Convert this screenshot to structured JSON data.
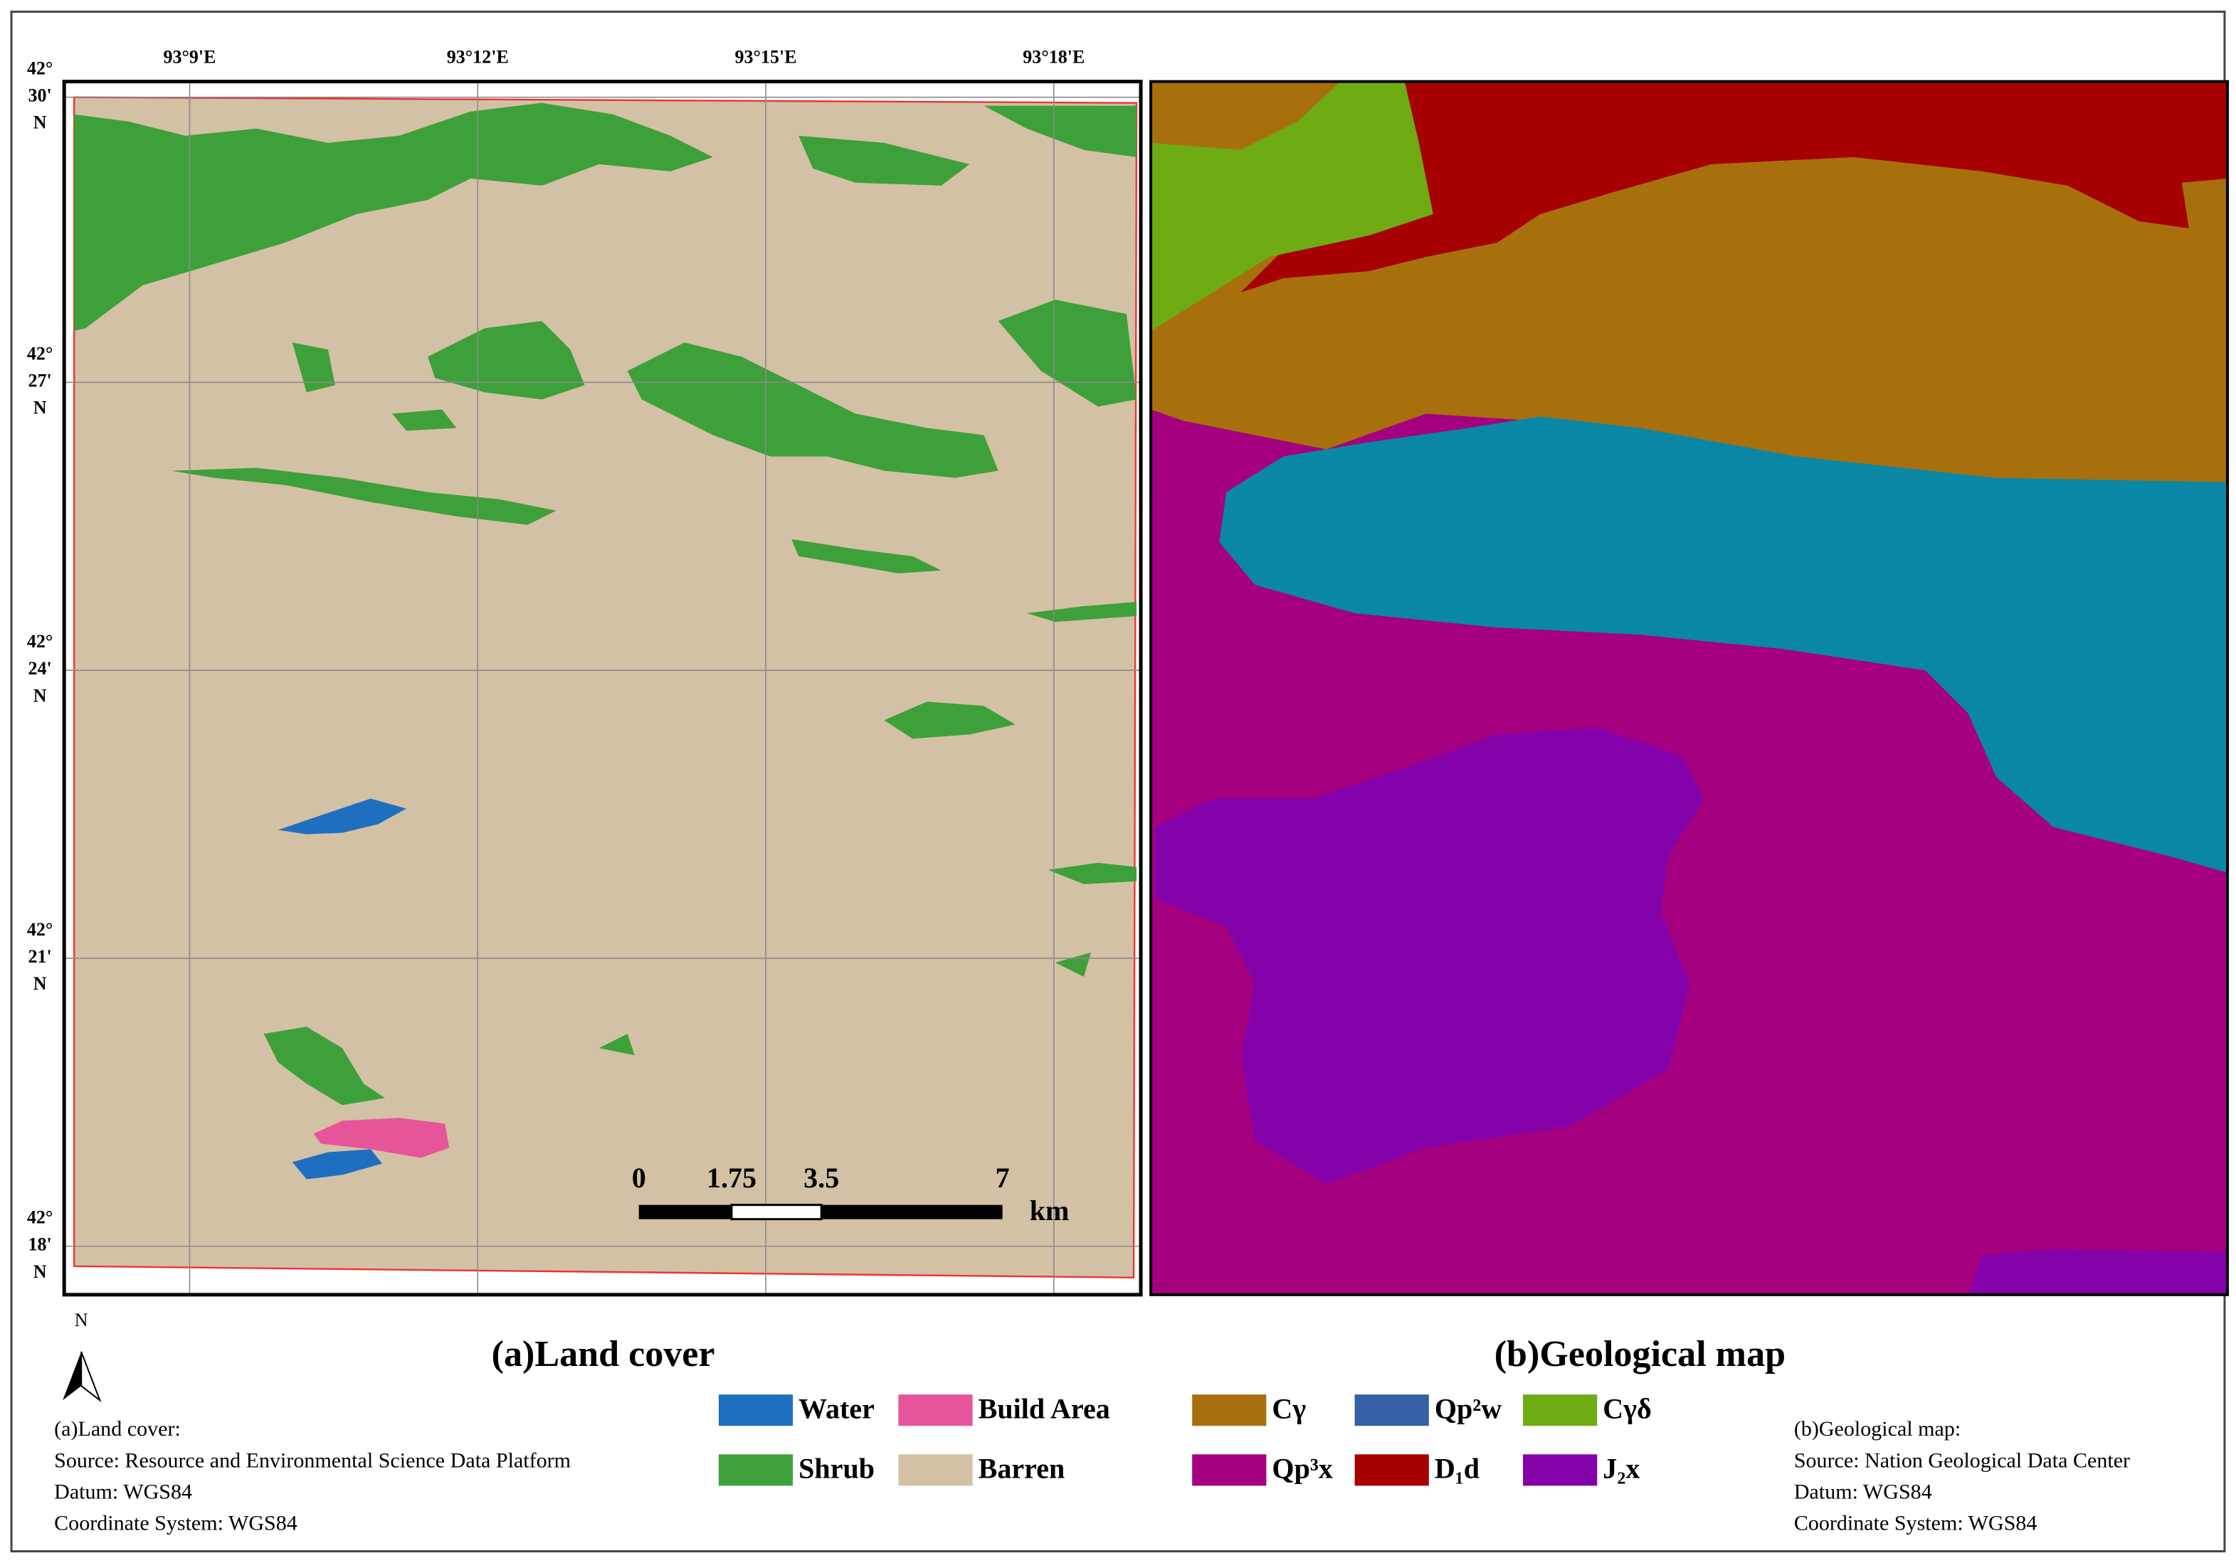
{
  "panel_a": {
    "lon_labels": [
      "93°9'E",
      "93°12'E",
      "93°15'E",
      "93°18'E"
    ],
    "lat_labels": [
      [
        "42°",
        "30'",
        "N"
      ],
      [
        "42°",
        "27'",
        "N"
      ],
      [
        "42°",
        "24'",
        "N"
      ],
      [
        "42°",
        "21'",
        "N"
      ],
      [
        "42°",
        "18'",
        "N"
      ]
    ],
    "scale_bar": {
      "labels": [
        "0",
        "1.75",
        "3.5",
        "7"
      ],
      "unit": "km"
    },
    "north_arrow": "N",
    "title": "(a)Land cover",
    "legend": [
      {
        "name": "Water",
        "color": "#1f6fc0"
      },
      {
        "name": "Build Area",
        "color": "#e6559a"
      },
      {
        "name": "Shrub",
        "color": "#3ea03a"
      },
      {
        "name": "Barren",
        "color": "#d3c1a5"
      }
    ],
    "note": [
      "(a)Land cover:",
      "Source: Resource and Environmental Science Data Platform",
      "Datum: WGS84",
      "Coordinate System: WGS84"
    ]
  },
  "panel_b": {
    "title": "(b)Geological map",
    "legend": [
      {
        "name": "Cγ",
        "color": "#a7700d"
      },
      {
        "name": "Qp²w",
        "color": "#3560a6"
      },
      {
        "name": "Cγδ",
        "color": "#6fac14"
      },
      {
        "name": "Qp³x",
        "color": "#a5007f"
      },
      {
        "name": "D₁d",
        "color": "#a60000"
      },
      {
        "name": "J₂x",
        "color": "#8400a9"
      }
    ],
    "note": [
      "(b)Geological map:",
      "Source: Nation Geological Data Center",
      "Datum: WGS84",
      "Coordinate System: WGS84"
    ]
  }
}
